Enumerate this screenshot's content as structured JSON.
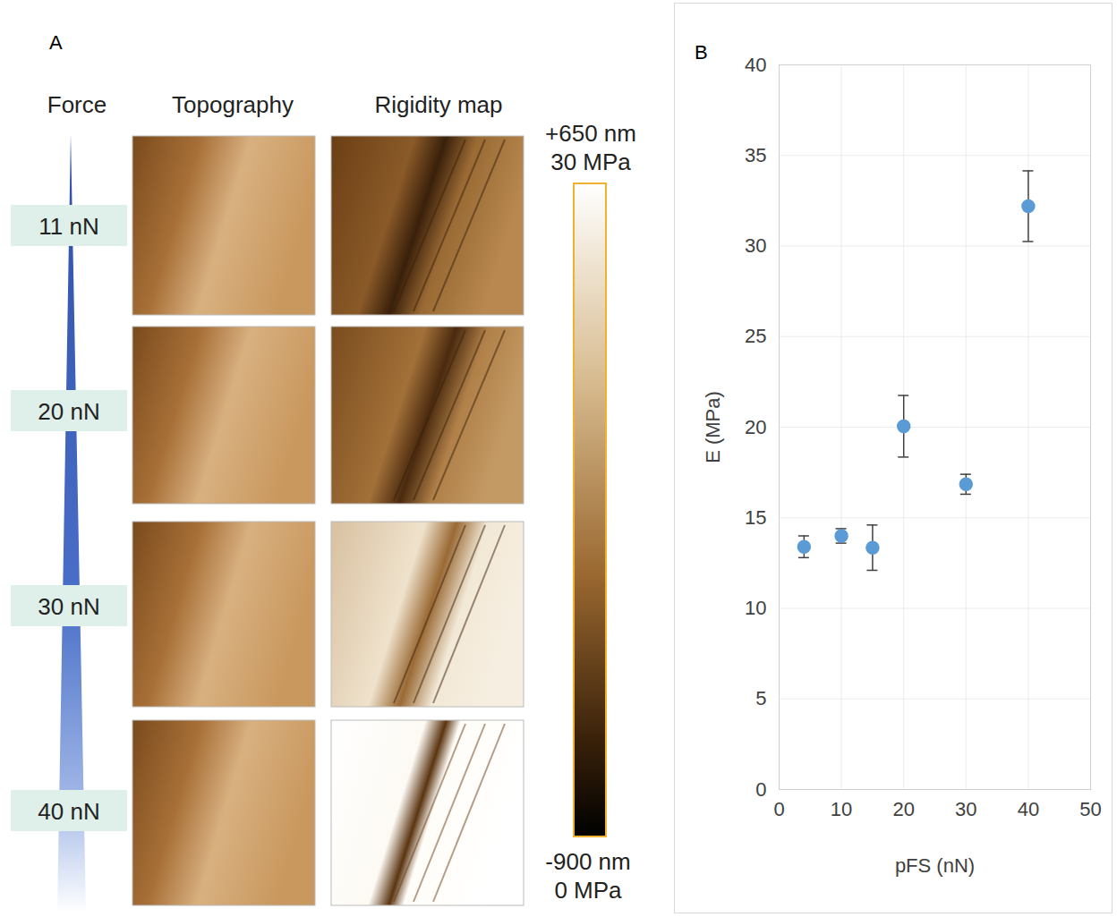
{
  "panel_a": {
    "label": "A",
    "column_heads": [
      "Force",
      "Topography",
      "Rigidity map"
    ],
    "forces": [
      "11 nN",
      "20 nN",
      "30 nN",
      "40 nN"
    ],
    "color_bar": {
      "top": [
        "+650 nm",
        "30 MPa"
      ],
      "bottom": [
        "-900 nm",
        "0 MPa"
      ]
    }
  },
  "chart_data": {
    "type": "scatter",
    "panel_label": "B",
    "x_label": "pFS (nN)",
    "y_label": "E (MPa)",
    "x": [
      4,
      10,
      15,
      20,
      30,
      40
    ],
    "values": [
      13.4,
      14.0,
      13.35,
      20.05,
      16.85,
      32.2
    ],
    "errors": [
      0.6,
      0.4,
      1.25,
      1.7,
      0.55,
      1.95
    ],
    "color": "#5b9bd5",
    "marker": "circle",
    "xlim": [
      0,
      50
    ],
    "xticks": [
      0,
      10,
      20,
      30,
      40,
      50
    ],
    "ylim": [
      0,
      40
    ],
    "yticks": [
      0,
      5,
      10,
      15,
      20,
      25,
      30,
      35,
      40
    ],
    "grid": true
  }
}
